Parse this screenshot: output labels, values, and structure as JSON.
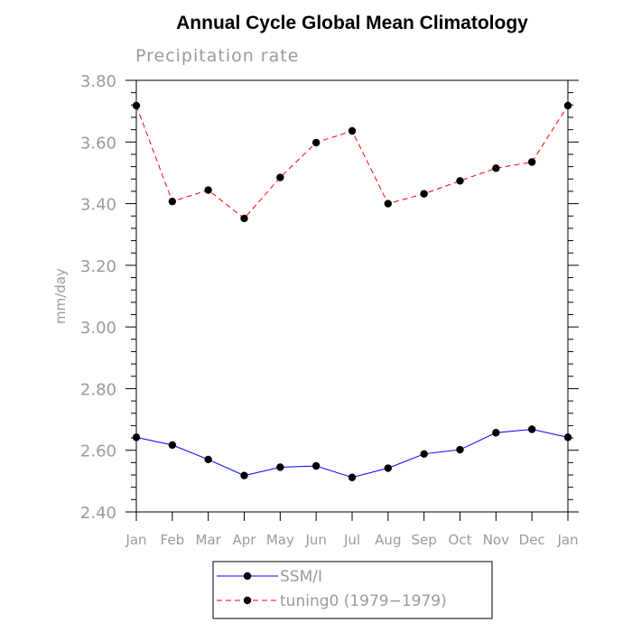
{
  "chart_data": {
    "type": "line",
    "title": "Annual Cycle Global Mean Climatology",
    "subtitle": "Precipitation rate",
    "xlabel": "",
    "ylabel": "mm/day",
    "ylim": [
      2.4,
      3.8
    ],
    "yticks": [
      "2.40",
      "2.60",
      "2.80",
      "3.00",
      "3.20",
      "3.40",
      "3.60",
      "3.80"
    ],
    "categories": [
      "Jan",
      "Feb",
      "Mar",
      "Apr",
      "May",
      "Jun",
      "Jul",
      "Aug",
      "Sep",
      "Oct",
      "Nov",
      "Dec",
      "Jan"
    ],
    "grid": false,
    "legend_position": "bottom",
    "series": [
      {
        "name": "SSM/I",
        "color": "#0000ff",
        "line_style": "solid",
        "marker": "filled-circle",
        "values": [
          2.642,
          2.617,
          2.57,
          2.518,
          2.545,
          2.549,
          2.512,
          2.542,
          2.588,
          2.602,
          2.657,
          2.668,
          2.642
        ]
      },
      {
        "name": "tuning0 (1979−1979)",
        "color": "#ff0000",
        "line_style": "dashed",
        "marker": "filled-circle",
        "values": [
          3.718,
          3.407,
          3.444,
          3.352,
          3.485,
          3.598,
          3.636,
          3.4,
          3.432,
          3.474,
          3.515,
          3.535,
          3.718
        ]
      }
    ]
  }
}
